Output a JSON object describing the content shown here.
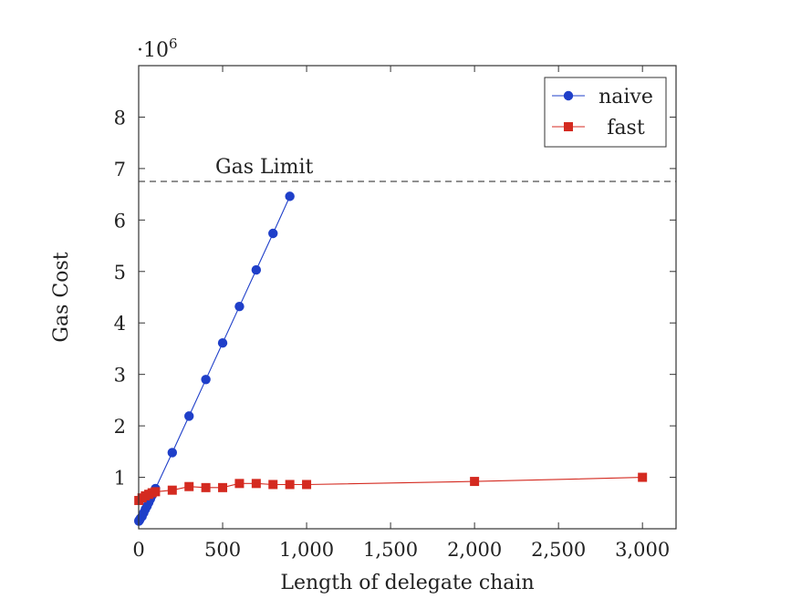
{
  "chart_data": {
    "type": "line",
    "xlabel": "Length of delegate chain",
    "ylabel": "Gas Cost",
    "y_multiplier_label": "·10",
    "y_multiplier_exp": "6",
    "xlim": [
      0,
      3200
    ],
    "ylim": [
      0,
      9
    ],
    "x_ticks": [
      0,
      500,
      1000,
      1500,
      2000,
      2500,
      3000
    ],
    "x_tick_labels": [
      "0",
      "500",
      "1,000",
      "1,500",
      "2,000",
      "2,500",
      "3,000"
    ],
    "y_ticks": [
      1,
      2,
      3,
      4,
      5,
      6,
      7,
      8
    ],
    "y_tick_labels": [
      "1",
      "2",
      "3",
      "4",
      "5",
      "6",
      "7",
      "8"
    ],
    "grid": false,
    "legend_position": "top-right",
    "reference_line": {
      "label": "Gas Limit",
      "y": 6.75,
      "style": "dashed",
      "color": "#222222"
    },
    "series": [
      {
        "name": "naive",
        "marker": "circle",
        "color": "#1f3fc9",
        "x": [
          1,
          2,
          5,
          10,
          20,
          30,
          40,
          50,
          60,
          70,
          80,
          100,
          200,
          300,
          400,
          500,
          600,
          700,
          800,
          900
        ],
        "y": [
          0.15,
          0.16,
          0.17,
          0.2,
          0.24,
          0.31,
          0.38,
          0.44,
          0.51,
          0.58,
          0.65,
          0.78,
          1.48,
          2.19,
          2.9,
          3.61,
          4.32,
          5.03,
          5.74,
          6.46
        ]
      },
      {
        "name": "fast",
        "marker": "square",
        "color": "#d42a20",
        "x": [
          1,
          20,
          40,
          60,
          80,
          100,
          200,
          300,
          400,
          500,
          600,
          700,
          800,
          900,
          1000,
          2000,
          3000
        ],
        "y": [
          0.55,
          0.6,
          0.64,
          0.67,
          0.7,
          0.72,
          0.75,
          0.82,
          0.8,
          0.8,
          0.88,
          0.88,
          0.86,
          0.86,
          0.86,
          0.92,
          1.0
        ]
      }
    ]
  }
}
